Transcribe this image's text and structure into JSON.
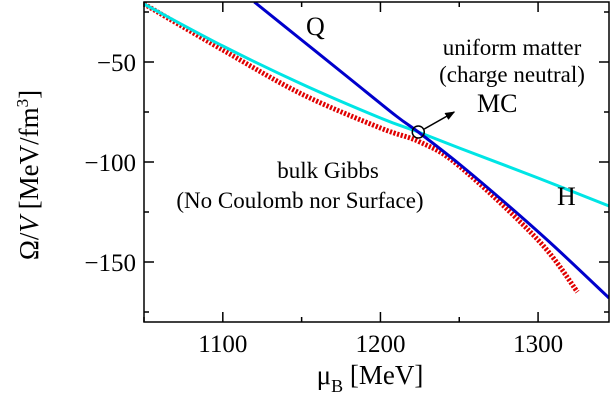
{
  "chart_data": {
    "type": "line",
    "x_axis": {
      "label_main": "μ",
      "label_sub": "B",
      "label_unit": " [MeV]",
      "lim": [
        1050,
        1345
      ],
      "ticks": [
        1100,
        1200,
        1300
      ],
      "tick_labels": [
        "1100",
        "1200",
        "1300"
      ]
    },
    "y_axis": {
      "label_omega": "Ω",
      "label_slash": "/",
      "label_v": "V",
      "label_unit": " [MeV/fm",
      "label_sup": "3",
      "label_close": "]",
      "lim": [
        -180,
        -20
      ],
      "ticks": [
        -50,
        -100,
        -150
      ],
      "tick_labels": [
        "−50",
        "−100",
        "−150"
      ]
    },
    "grid": false,
    "series": [
      {
        "name": "Q",
        "color": "#0000cc",
        "style": "solid",
        "x": [
          1120,
          1150,
          1180,
          1210,
          1224,
          1250,
          1280,
          1310,
          1345
        ],
        "y": [
          -20,
          -39,
          -58,
          -77,
          -85,
          -101,
          -121,
          -142,
          -168
        ]
      },
      {
        "name": "H",
        "color": "#00e5e5",
        "style": "solid",
        "x": [
          1050,
          1100,
          1150,
          1200,
          1224,
          1250,
          1300,
          1345
        ],
        "y": [
          -21,
          -42,
          -61,
          -78,
          -85,
          -93,
          -108,
          -122
        ]
      },
      {
        "name": "bulk Gibbs",
        "color": "#e00000",
        "style": "dotted",
        "x": [
          1050,
          1100,
          1150,
          1200,
          1225,
          1250,
          1300,
          1325
        ],
        "y": [
          -21,
          -44,
          -66,
          -83,
          -90,
          -102,
          -139,
          -165
        ]
      }
    ],
    "annotations": {
      "q_label": "Q",
      "h_label": "H",
      "mc_label": "MC",
      "uniform_line1": "uniform matter",
      "uniform_line2": "(charge neutral)",
      "gibbs_line1": "bulk Gibbs",
      "gibbs_line2": "(No Coulomb nor Surface)"
    },
    "mc_point": {
      "x": 1224,
      "y": -85
    }
  }
}
